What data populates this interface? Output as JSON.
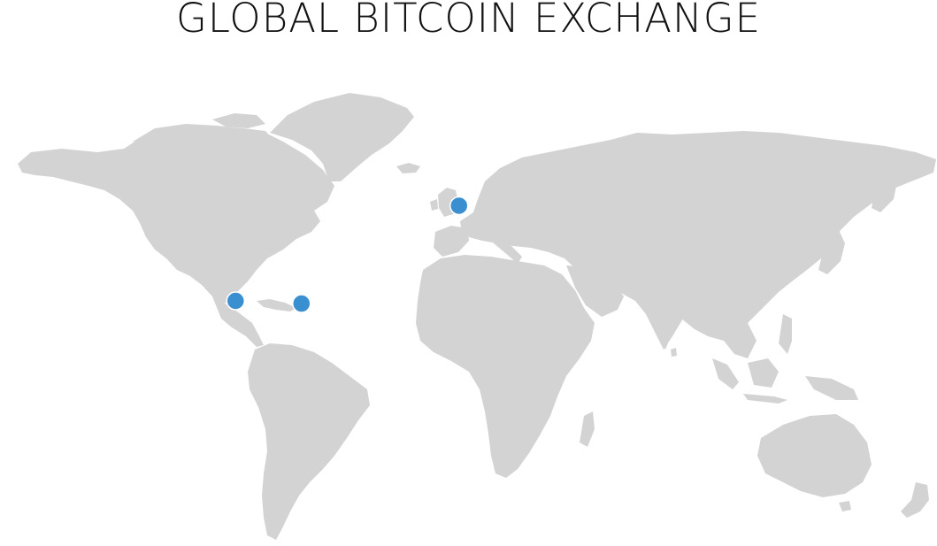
{
  "title": "GLOBAL BITCOIN EXCHANGE",
  "colors": {
    "land": "#d3d3d3",
    "marker": "#3a8fd0",
    "marker_stroke": "#ffffff",
    "title": "#111111",
    "background": "#ffffff"
  },
  "map": {
    "projection": "world",
    "markers": [
      {
        "name": "London",
        "lat": 51.5,
        "lon": -0.1
      },
      {
        "name": "Mexico",
        "lat": 19.4,
        "lon": -99.1
      },
      {
        "name": "Caribbean",
        "lat": 18.5,
        "lon": -69.9
      }
    ]
  }
}
